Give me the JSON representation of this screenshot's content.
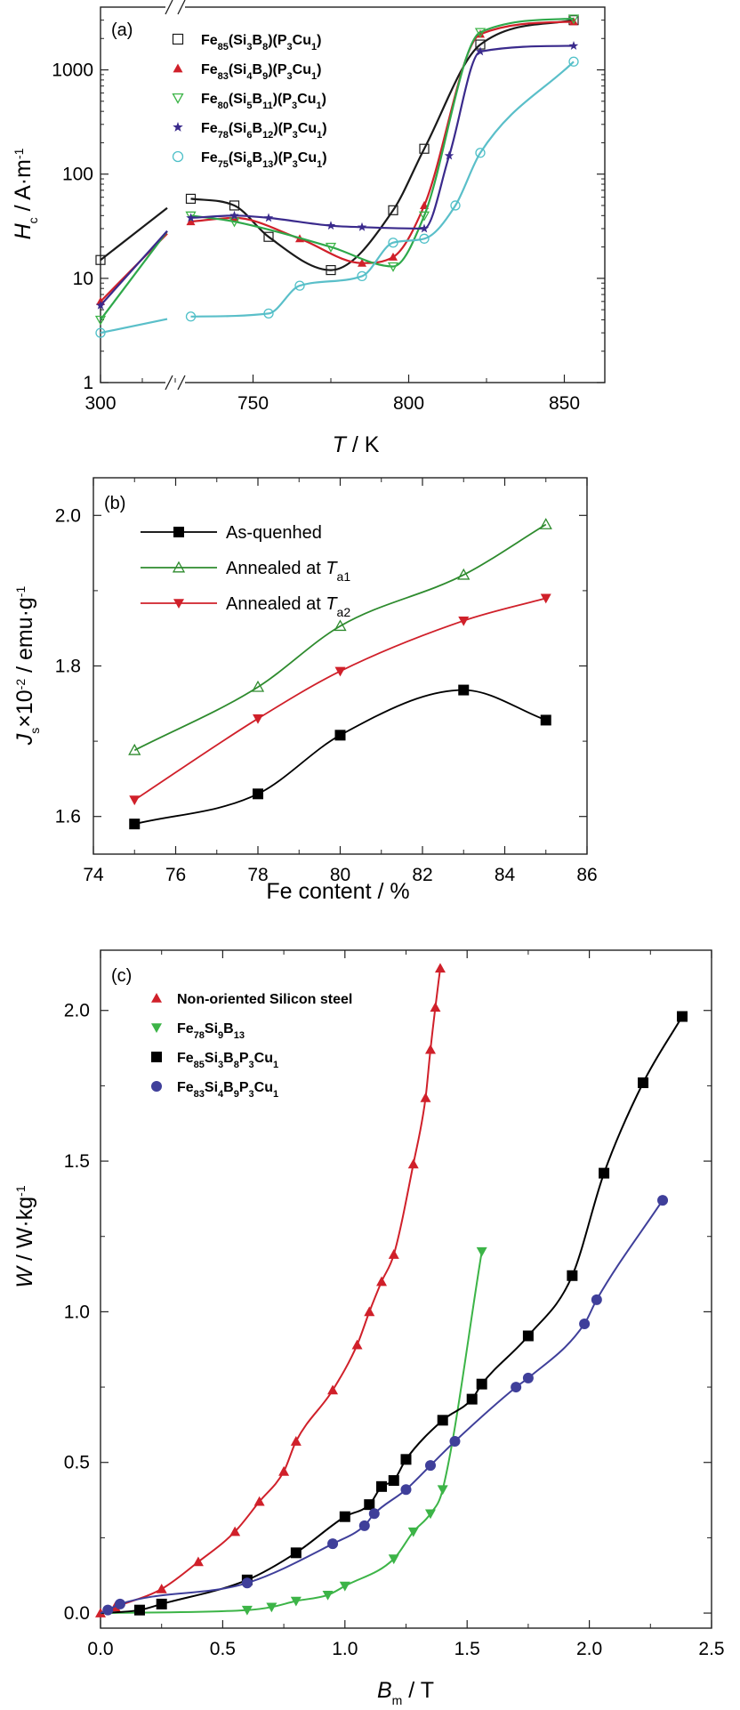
{
  "chart_data": [
    {
      "panel": "(a)",
      "type": "line",
      "y_scale": "log",
      "ylim": [
        1,
        4000
      ],
      "xlim": [
        300,
        855
      ],
      "x_breaks": [
        "300",
        "...",
        "750",
        "800",
        "850"
      ],
      "x_ticks": [
        300,
        750,
        800,
        850
      ],
      "y_ticks": [
        1,
        10,
        100,
        1000
      ],
      "xlabel": "T / K",
      "xlabel_parts": {
        "main": "T",
        "unit": " / K"
      },
      "ylabel": "Hc / A·m-1",
      "ylabel_parts": {
        "main": "H",
        "sub": "c",
        "unit": " / A·m",
        "sup": "-1"
      },
      "series": [
        {
          "name": "Fe85(Si3B8)(P3Cu1)",
          "label_parts": [
            "Fe",
            "85",
            "(Si",
            "3",
            "B",
            "8",
            ")(P",
            "3",
            "Cu",
            "1",
            ")"
          ],
          "color": "#1a1a1a",
          "marker": "open-square",
          "line": "#1a1a1a",
          "points": [
            [
              300,
              15
            ],
            [
              730,
              58
            ],
            [
              744,
              50
            ],
            [
              755,
              25
            ],
            [
              775,
              12
            ],
            [
              795,
              45
            ],
            [
              805,
              175
            ],
            [
              823,
              1750
            ],
            [
              853,
              3000
            ]
          ]
        },
        {
          "name": "Fe83(Si4B9)(P3Cu1)",
          "label_parts": [
            "Fe",
            "83",
            "(Si",
            "4",
            "B",
            "9",
            ")(P",
            "3",
            "Cu",
            "1",
            ")"
          ],
          "color": "#d0202a",
          "marker": "filled-triangle",
          "line": "#d0202a",
          "points": [
            [
              300,
              6
            ],
            [
              730,
              35
            ],
            [
              744,
              38
            ],
            [
              765,
              24
            ],
            [
              785,
              14
            ],
            [
              795,
              16
            ],
            [
              805,
              50
            ],
            [
              823,
              2200
            ],
            [
              853,
              2900
            ]
          ]
        },
        {
          "name": "Fe80(Si5B11)(P3Cu1)",
          "label_parts": [
            "Fe",
            "80",
            "(Si",
            "5",
            "B",
            "11",
            ")(P",
            "3",
            "Cu",
            "1",
            ")"
          ],
          "color": "#3cb447",
          "marker": "open-triangle-down",
          "line": "#2ea84a",
          "points": [
            [
              300,
              4
            ],
            [
              730,
              40
            ],
            [
              744,
              35
            ],
            [
              775,
              20
            ],
            [
              795,
              13
            ],
            [
              805,
              40
            ],
            [
              823,
              2300
            ],
            [
              853,
              3100
            ]
          ]
        },
        {
          "name": "Fe78(Si6B12)(P3Cu1)",
          "label_parts": [
            "Fe",
            "78",
            "(Si",
            "6",
            "B",
            "12",
            ")(P",
            "3",
            "Cu",
            "1",
            ")"
          ],
          "color": "#3a2a8c",
          "marker": "star",
          "line": "#3a2a8c",
          "points": [
            [
              300,
              5.5
            ],
            [
              730,
              38
            ],
            [
              744,
              40
            ],
            [
              755,
              38
            ],
            [
              775,
              32
            ],
            [
              785,
              31
            ],
            [
              805,
              30
            ],
            [
              813,
              150
            ],
            [
              823,
              1500
            ],
            [
              853,
              1700
            ]
          ]
        },
        {
          "name": "Fe75(Si8B13)(P3Cu1)",
          "label_parts": [
            "Fe",
            "75",
            "(Si",
            "8",
            "B",
            "13",
            ")(P",
            "3",
            "Cu",
            "1",
            ")"
          ],
          "color": "#4fc0c8",
          "marker": "open-circle",
          "line": "#5abfc9",
          "points": [
            [
              300,
              3
            ],
            [
              730,
              4.3
            ],
            [
              755,
              4.6
            ],
            [
              765,
              8.5
            ],
            [
              785,
              10.5
            ],
            [
              795,
              22
            ],
            [
              805,
              24
            ],
            [
              815,
              50
            ],
            [
              823,
              160
            ],
            [
              853,
              1200
            ]
          ]
        }
      ]
    },
    {
      "panel": "(b)",
      "type": "line",
      "xlim": [
        74,
        86
      ],
      "ylim": [
        1.55,
        2.05
      ],
      "x_ticks": [
        74,
        76,
        78,
        80,
        82,
        84,
        86
      ],
      "y_ticks": [
        1.6,
        1.8,
        2.0
      ],
      "y_tick_labels": [
        "1.6",
        "1.8",
        "2.0"
      ],
      "xlabel": "Fe content / %",
      "ylabel": "Js×10-2 / emu·g-1",
      "ylabel_parts": {
        "main": "J",
        "sub": "s",
        "mid": "×10",
        "sup1": "-2",
        "unit": " / emu·g",
        "sup2": "-1"
      },
      "x": [
        75,
        78,
        80,
        83,
        85
      ],
      "series": [
        {
          "name": "As-quenhed",
          "name_parts": [
            "As-quenhed",
            "",
            ""
          ],
          "color": "#000000",
          "marker": "filled-square",
          "values": [
            1.59,
            1.63,
            1.708,
            1.768,
            1.728
          ]
        },
        {
          "name": "Annealed at Ta1",
          "name_parts": [
            "Annealed at ",
            "T",
            "a1"
          ],
          "color": "#2e8b2e",
          "marker": "open-triangle",
          "values": [
            1.688,
            1.772,
            1.853,
            1.921,
            1.988
          ]
        },
        {
          "name": "Annealed at Ta2",
          "name_parts": [
            "Annealed at ",
            "T",
            "a2"
          ],
          "color": "#d0202a",
          "marker": "filled-triangle-down",
          "values": [
            1.622,
            1.73,
            1.793,
            1.86,
            1.89
          ]
        }
      ]
    },
    {
      "panel": "(c)",
      "type": "scatter",
      "xlim": [
        0,
        2.5
      ],
      "ylim": [
        -0.05,
        2.2
      ],
      "x_ticks": [
        0,
        0.5,
        1.0,
        1.5,
        2.0,
        2.5
      ],
      "x_tick_labels": [
        "0.0",
        "0.5",
        "1.0",
        "1.5",
        "2.0",
        "2.5"
      ],
      "y_ticks": [
        0,
        0.5,
        1.0,
        1.5,
        2.0
      ],
      "y_tick_labels": [
        "0.0",
        "0.5",
        "1.0",
        "1.5",
        "2.0"
      ],
      "xlabel": "Bm / T",
      "xlabel_parts": {
        "main": "B",
        "sub": "m",
        "unit": " / T"
      },
      "ylabel": "W / W·kg-1",
      "ylabel_parts": {
        "main": "W",
        "unit": " / W·kg",
        "sup": "-1"
      },
      "series": [
        {
          "name": "Non-oriented Silicon steel",
          "label_parts": [
            "Non-oriented Silicon steel"
          ],
          "color": "#d0202a",
          "marker": "filled-triangle",
          "points": [
            [
              0.0,
              0.0
            ],
            [
              0.06,
              0.02
            ],
            [
              0.25,
              0.08
            ],
            [
              0.4,
              0.17
            ],
            [
              0.55,
              0.27
            ],
            [
              0.65,
              0.37
            ],
            [
              0.75,
              0.47
            ],
            [
              0.8,
              0.57
            ],
            [
              0.95,
              0.74
            ],
            [
              1.05,
              0.89
            ],
            [
              1.1,
              1.0
            ],
            [
              1.15,
              1.1
            ],
            [
              1.2,
              1.19
            ],
            [
              1.28,
              1.49
            ],
            [
              1.33,
              1.71
            ],
            [
              1.35,
              1.87
            ],
            [
              1.37,
              2.01
            ],
            [
              1.39,
              2.14
            ]
          ]
        },
        {
          "name": "Fe78Si9B13",
          "label_parts": [
            "Fe",
            "78",
            "Si",
            "9",
            "B",
            "13"
          ],
          "color": "#3cb447",
          "marker": "filled-triangle-down",
          "points": [
            [
              0.6,
              0.01
            ],
            [
              0.7,
              0.02
            ],
            [
              0.8,
              0.04
            ],
            [
              0.93,
              0.06
            ],
            [
              1.0,
              0.09
            ],
            [
              1.2,
              0.18
            ],
            [
              1.28,
              0.27
            ],
            [
              1.35,
              0.33
            ],
            [
              1.4,
              0.41
            ],
            [
              1.56,
              1.2
            ]
          ]
        },
        {
          "name": "Fe85Si3B8P3Cu1",
          "label_parts": [
            "Fe",
            "85",
            "Si",
            "3",
            "B",
            "8",
            "P",
            "3",
            "Cu",
            "1"
          ],
          "color": "#000000",
          "marker": "filled-square",
          "points": [
            [
              0.16,
              0.01
            ],
            [
              0.25,
              0.03
            ],
            [
              0.6,
              0.11
            ],
            [
              0.8,
              0.2
            ],
            [
              1.0,
              0.32
            ],
            [
              1.1,
              0.36
            ],
            [
              1.15,
              0.42
            ],
            [
              1.2,
              0.44
            ],
            [
              1.25,
              0.51
            ],
            [
              1.4,
              0.64
            ],
            [
              1.52,
              0.71
            ],
            [
              1.56,
              0.76
            ],
            [
              1.75,
              0.92
            ],
            [
              1.93,
              1.12
            ],
            [
              2.06,
              1.46
            ],
            [
              2.22,
              1.76
            ],
            [
              2.38,
              1.98
            ]
          ]
        },
        {
          "name": "Fe83Si4B9P3Cu1",
          "label_parts": [
            "Fe",
            "83",
            "Si",
            "4",
            "B",
            "9",
            "P",
            "3",
            "Cu",
            "1"
          ],
          "color": "#3f3f9a",
          "marker": "filled-circle",
          "points": [
            [
              0.03,
              0.01
            ],
            [
              0.08,
              0.03
            ],
            [
              0.6,
              0.1
            ],
            [
              0.95,
              0.23
            ],
            [
              1.08,
              0.29
            ],
            [
              1.12,
              0.33
            ],
            [
              1.25,
              0.41
            ],
            [
              1.35,
              0.49
            ],
            [
              1.45,
              0.57
            ],
            [
              1.7,
              0.75
            ],
            [
              1.75,
              0.78
            ],
            [
              1.98,
              0.96
            ],
            [
              2.03,
              1.04
            ],
            [
              2.3,
              1.37
            ]
          ]
        }
      ]
    }
  ]
}
